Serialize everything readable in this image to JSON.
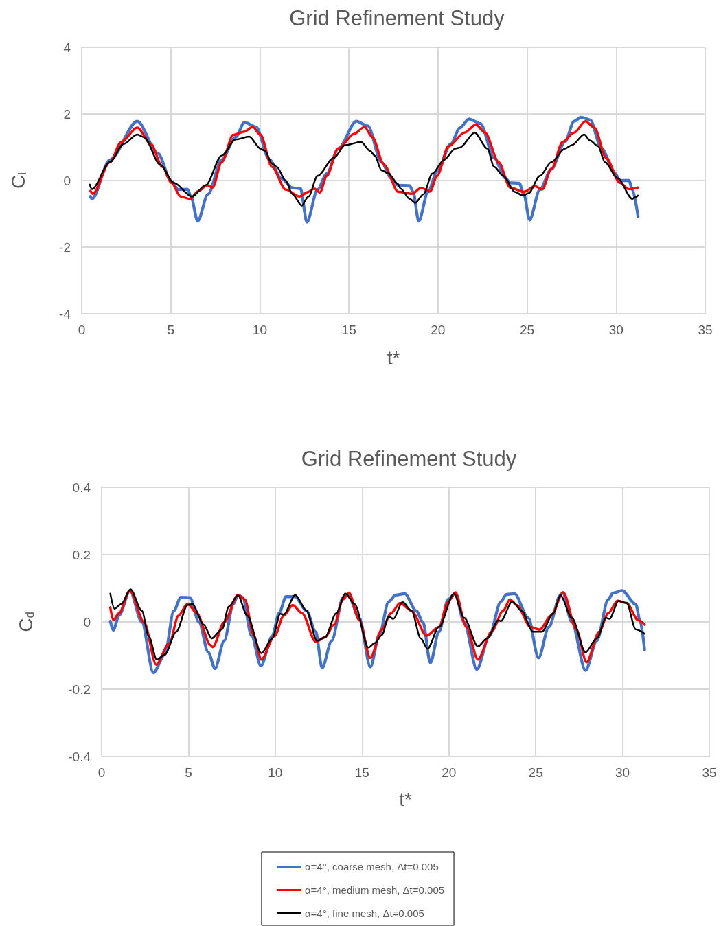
{
  "chart_data": [
    {
      "type": "line",
      "title": "Grid Refinement Study",
      "xlabel": "t*",
      "ylabel": "C$_{l}$",
      "xlim": [
        0,
        35
      ],
      "xticks": [
        0,
        5,
        10,
        15,
        20,
        25,
        30,
        35
      ],
      "ylim": [
        -4,
        4
      ],
      "yticks": [
        -4,
        -2,
        0,
        2,
        4
      ],
      "grid": true,
      "marker": "none",
      "line_style": "solid",
      "legend": false,
      "series": [
        {
          "color": "#4472c4",
          "x": [
            0.49,
            0.58,
            1.58,
            3.12,
            4.27,
            5.04,
            5.42,
            5.94,
            6.13,
            6.51,
            7.09,
            7.86,
            8.63,
            9.14,
            9.78,
            10.55,
            11.19,
            11.83,
            12.28,
            12.64,
            13.24,
            13.76,
            14.4,
            15.42,
            16.06,
            16.83,
            17.38,
            17.77,
            18.41,
            18.6,
            18.92,
            19.44,
            19.95,
            20.72,
            21.23,
            21.74,
            22.38,
            23.15,
            23.79,
            24.05,
            24.56,
            24.82,
            25.14,
            25.72,
            26.36,
            27.13,
            27.64,
            28.03,
            28.54,
            29.18,
            29.95,
            30.21,
            30.72,
            30.91,
            31.23
          ],
          "values": [
            -0.48,
            -0.55,
            0.62,
            1.78,
            0.82,
            -0.03,
            -0.27,
            -0.26,
            -0.48,
            -1.22,
            -0.41,
            0.62,
            1.3,
            1.75,
            1.61,
            0.62,
            0.07,
            -0.22,
            -0.24,
            -1.25,
            -0.27,
            0.21,
            0.96,
            1.78,
            1.64,
            0.55,
            0.07,
            -0.14,
            -0.15,
            -0.34,
            -1.22,
            -0.34,
            0.27,
            1.1,
            1.58,
            1.85,
            1.71,
            0.68,
            0.07,
            -0.07,
            -0.08,
            -0.41,
            -1.18,
            -0.27,
            0.34,
            1.16,
            1.78,
            1.9,
            1.82,
            0.96,
            0.21,
            0,
            0,
            -0.27,
            -1.08
          ]
        },
        {
          "color": "#ff0000",
          "x": [
            0.49,
            0.62,
            1.58,
            2.22,
            3.12,
            3.88,
            4.53,
            5.04,
            5.55,
            6.06,
            6.58,
            7.03,
            7.35,
            7.86,
            8.5,
            9.14,
            9.59,
            10.04,
            10.68,
            11.45,
            12.22,
            12.73,
            13.05,
            13.37,
            13.76,
            14.4,
            15.29,
            15.87,
            16.32,
            16.96,
            17.77,
            18.54,
            19.05,
            19.56,
            19.95,
            20.59,
            21.49,
            22.13,
            22.64,
            23.41,
            24.05,
            24.82,
            25.46,
            25.85,
            26.36,
            27.0,
            27.64,
            28.28,
            28.79,
            29.44,
            30.21,
            30.72,
            31.23
          ],
          "values": [
            -0.31,
            -0.4,
            0.55,
            1.16,
            1.59,
            1.1,
            0.41,
            -0.07,
            -0.48,
            -0.55,
            -0.31,
            -0.14,
            -0.21,
            0.55,
            1.37,
            1.47,
            1.61,
            1.37,
            0.41,
            -0.27,
            -0.48,
            -0.34,
            -0.24,
            -0.36,
            0.14,
            0.96,
            1.4,
            1.61,
            1.3,
            0.48,
            -0.34,
            -0.4,
            -0.22,
            -0.33,
            0.14,
            1.03,
            1.44,
            1.68,
            1.44,
            0.55,
            -0.21,
            -0.34,
            -0.17,
            -0.27,
            0.34,
            1.16,
            1.44,
            1.78,
            1.58,
            0.68,
            -0.07,
            -0.26,
            -0.21
          ]
        },
        {
          "color": "#000000",
          "x": [
            0.45,
            0.58,
            1.58,
            2.35,
            3.12,
            3.5,
            4.4,
            5.17,
            6.19,
            6.96,
            7.86,
            8.63,
            9.4,
            10.04,
            10.29,
            10.68,
            10.94,
            11.45,
            11.83,
            12.35,
            12.73,
            13.24,
            14.15,
            14.78,
            15.68,
            16.19,
            16.45,
            16.83,
            17.22,
            17.73,
            17.9,
            18.41,
            18.73,
            19.18,
            19.69,
            20.33,
            20.97,
            21.23,
            22.06,
            22.77,
            23.15,
            23.67,
            24.31,
            24.76,
            25.08,
            25.72,
            26.36,
            27.13,
            27.51,
            28.21,
            28.54,
            28.99,
            29.37,
            30.08,
            30.91,
            31.04,
            31.23
          ],
          "values": [
            -0.12,
            -0.26,
            0.55,
            1.1,
            1.38,
            1.3,
            0.48,
            -0.07,
            -0.48,
            -0.14,
            0.75,
            1.23,
            1.32,
            0.96,
            0.89,
            0.51,
            0.41,
            0,
            -0.41,
            -0.75,
            -0.48,
            0.14,
            0.68,
            1.06,
            1.16,
            0.89,
            0.75,
            0.31,
            0.21,
            -0.1,
            -0.24,
            -0.55,
            -0.67,
            -0.41,
            0.21,
            0.62,
            0.96,
            0.99,
            1.44,
            0.96,
            0.41,
            0.14,
            -0.34,
            -0.45,
            -0.38,
            0.14,
            0.55,
            0.96,
            1.06,
            1.38,
            1.2,
            1.03,
            0.55,
            0.07,
            -0.55,
            -0.51,
            -0.45
          ]
        }
      ]
    },
    {
      "type": "line",
      "title": "Grid Refinement Study",
      "xlabel": "t*",
      "ylabel": "C$_{d}$",
      "xlim": [
        0,
        35
      ],
      "xticks": [
        0,
        5,
        10,
        15,
        20,
        25,
        30,
        35
      ],
      "ylim": [
        -0.4,
        0.4
      ],
      "yticks": [
        -0.4,
        -0.2,
        0,
        0.2,
        0.4
      ],
      "grid": true,
      "marker": "none",
      "line_style": "solid",
      "legend": "bottom",
      "series": [
        {
          "name": "α=4°, coarse mesh, Δt=0.005",
          "color": "#4472c4",
          "x": [
            0.5,
            0.67,
            1.0,
            1.63,
            2.32,
            2.98,
            3.64,
            4.16,
            4.56,
            5.09,
            5.61,
            6.14,
            6.53,
            7.06,
            7.59,
            7.85,
            8.12,
            8.64,
            9.17,
            9.83,
            10.22,
            10.62,
            11.15,
            11.8,
            12.33,
            12.7,
            13.25,
            13.91,
            14.18,
            14.84,
            15.48,
            16.01,
            16.53,
            16.93,
            17.46,
            18.12,
            18.51,
            18.93,
            19.43,
            19.96,
            20.36,
            20.88,
            21.61,
            22.33,
            22.99,
            23.32,
            23.78,
            24.57,
            25.16,
            25.76,
            26.42,
            26.55,
            27.08,
            27.87,
            28.52,
            29.18,
            29.45,
            29.97,
            30.76,
            31.03,
            31.27
          ],
          "values": [
            0.002,
            -0.025,
            0.019,
            0.093,
            -0.001,
            -0.151,
            -0.097,
            0.033,
            0.073,
            0.072,
            -0.001,
            -0.09,
            -0.139,
            -0.056,
            0.053,
            0.08,
            0.073,
            -0.042,
            -0.131,
            -0.042,
            0.026,
            0.075,
            0.075,
            0.033,
            -0.029,
            -0.137,
            -0.056,
            0.073,
            0.082,
            0.012,
            -0.134,
            -0.035,
            0.06,
            0.08,
            0.084,
            0.033,
            -0.001,
            -0.122,
            -0.029,
            0.067,
            0.084,
            -0.001,
            -0.141,
            -0.042,
            0.06,
            0.082,
            0.084,
            0.012,
            -0.107,
            -0.015,
            0.08,
            0.087,
            -0.001,
            -0.144,
            -0.056,
            0.067,
            0.086,
            0.093,
            0.053,
            -0.001,
            -0.083
          ]
        },
        {
          "name": "α=4°, medium mesh, Δt=0.005",
          "color": "#ff0000",
          "x": [
            0.5,
            0.67,
            1.0,
            1.63,
            2.45,
            3.14,
            3.9,
            4.43,
            4.95,
            5.48,
            6.27,
            6.4,
            7.06,
            7.85,
            8.25,
            8.77,
            9.2,
            9.96,
            10.49,
            11.01,
            11.54,
            12.33,
            12.86,
            13.39,
            13.91,
            14.24,
            14.84,
            15.48,
            16.14,
            16.67,
            17.19,
            17.85,
            18.71,
            19.43,
            19.96,
            20.38,
            21.01,
            21.67,
            22.46,
            23.12,
            23.52,
            23.91,
            24.7,
            25.23,
            25.89,
            26.59,
            27.34,
            27.93,
            28.66,
            29.18,
            29.71,
            30.24,
            30.9,
            31.27
          ],
          "values": [
            0.043,
            0.005,
            0.026,
            0.093,
            -0.001,
            -0.127,
            -0.063,
            0.019,
            0.054,
            0.026,
            -0.069,
            -0.075,
            -0.001,
            0.08,
            0.067,
            -0.042,
            -0.112,
            -0.042,
            0.019,
            0.05,
            0.026,
            -0.059,
            -0.046,
            -0.008,
            0.067,
            0.087,
            0.005,
            -0.107,
            -0.022,
            0.026,
            0.056,
            0.033,
            -0.041,
            -0.015,
            0.06,
            0.088,
            -0.015,
            -0.112,
            -0.029,
            0.033,
            0.067,
            0.05,
            -0.015,
            -0.023,
            0.019,
            0.088,
            -0.022,
            -0.12,
            -0.029,
            0.026,
            0.063,
            0.056,
            0.005,
            -0.008
          ]
        },
        {
          "name": "α=4°, fine mesh, Δt=0.005",
          "color": "#000000",
          "x": [
            0.5,
            0.74,
            1.13,
            1.66,
            2.32,
            2.71,
            3.18,
            3.64,
            4.3,
            4.95,
            5.22,
            5.88,
            6.34,
            6.93,
            7.33,
            7.85,
            8.38,
            9.2,
            9.83,
            10.29,
            10.49,
            11.15,
            11.8,
            12.4,
            12.86,
            13.52,
            14.04,
            14.57,
            15.36,
            15.74,
            16.14,
            16.53,
            16.8,
            17.33,
            17.85,
            18.38,
            18.77,
            19.43,
            20.29,
            20.88,
            21.67,
            22.2,
            22.86,
            22.99,
            23.65,
            24.18,
            24.84,
            25.36,
            26.02,
            26.42,
            27.08,
            27.87,
            28.52,
            29.05,
            29.25,
            29.78,
            30.24,
            30.76,
            31.27
          ],
          "values": [
            0.084,
            0.039,
            0.053,
            0.097,
            0.033,
            -0.042,
            -0.112,
            -0.097,
            -0.029,
            0.05,
            0.053,
            -0.008,
            -0.049,
            -0.022,
            0.046,
            0.079,
            0.019,
            -0.093,
            -0.049,
            0.024,
            0.022,
            0.08,
            0.033,
            -0.056,
            -0.046,
            0.026,
            0.084,
            0.053,
            -0.076,
            -0.063,
            -0.039,
            0.016,
            0.009,
            0.059,
            0.033,
            -0.049,
            -0.08,
            -0.015,
            0.084,
            0.012,
            -0.073,
            -0.049,
            0.005,
            0.002,
            0.061,
            0.033,
            -0.029,
            -0.029,
            0.026,
            0.079,
            0.012,
            -0.09,
            -0.049,
            0.012,
            0.009,
            0.063,
            0.056,
            -0.022,
            -0.035
          ]
        }
      ]
    }
  ]
}
